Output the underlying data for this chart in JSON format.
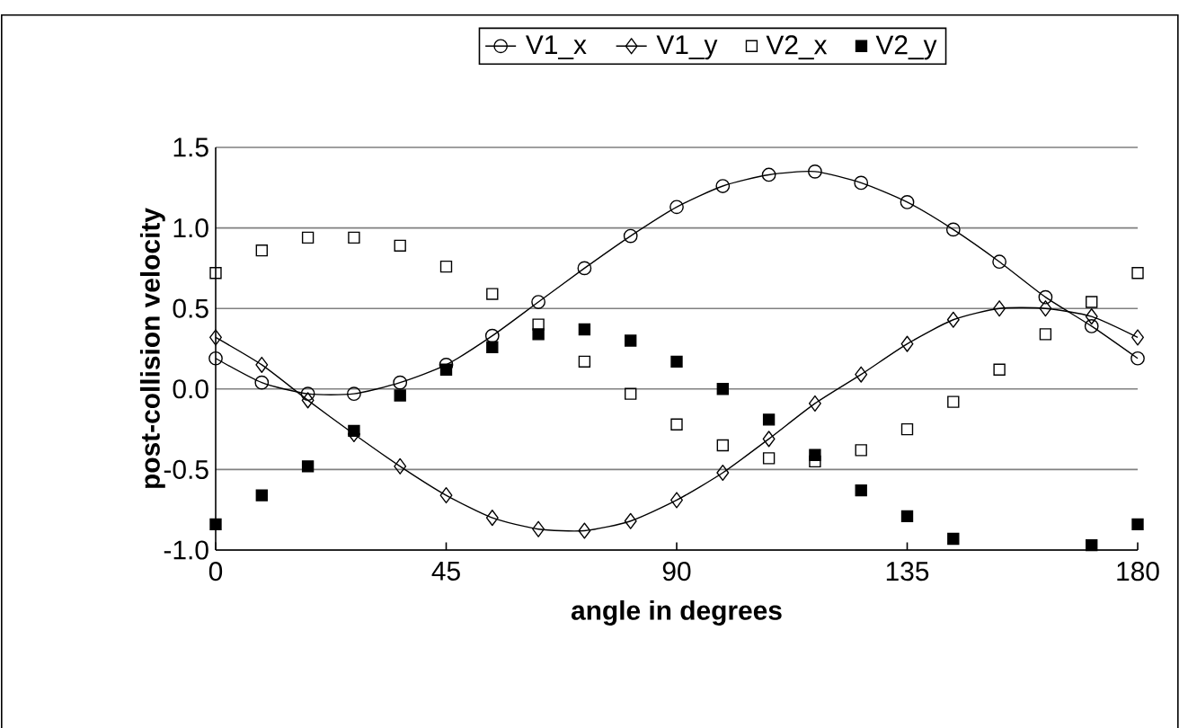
{
  "chart_data": {
    "type": "line",
    "xlabel": "angle in degrees",
    "ylabel": "post-collision velocity",
    "x": [
      0,
      9,
      18,
      27,
      36,
      45,
      54,
      63,
      72,
      81,
      90,
      99,
      108,
      117,
      126,
      135,
      144,
      153,
      162,
      171,
      180
    ],
    "series": [
      {
        "name": "V1_x",
        "marker": "circle",
        "color": "#000000",
        "values": [
          0.19,
          0.04,
          -0.03,
          -0.03,
          0.04,
          0.15,
          0.33,
          0.54,
          0.75,
          0.95,
          1.13,
          1.26,
          1.33,
          1.35,
          1.28,
          1.16,
          0.99,
          0.79,
          0.57,
          0.39,
          0.19
        ]
      },
      {
        "name": "V1_y",
        "marker": "diamond",
        "color": "#000000",
        "values": [
          0.32,
          0.15,
          -0.07,
          -0.28,
          -0.48,
          -0.66,
          -0.8,
          -0.87,
          -0.88,
          -0.82,
          -0.69,
          -0.52,
          -0.31,
          -0.09,
          0.09,
          0.28,
          0.43,
          0.5,
          0.5,
          0.45,
          0.32
        ]
      },
      {
        "name": "V2_x",
        "type": "scatter",
        "marker": "square",
        "color": "#000000",
        "values": [
          0.72,
          0.86,
          0.94,
          0.94,
          0.89,
          0.76,
          0.59,
          0.4,
          0.17,
          -0.03,
          -0.22,
          -0.35,
          -0.43,
          -0.45,
          -0.38,
          -0.25,
          -0.08,
          0.12,
          0.34,
          0.54,
          0.72
        ]
      },
      {
        "name": "V2_y",
        "type": "scatter",
        "marker": "square",
        "color": "#000000",
        "values": [
          -0.84,
          -0.66,
          -0.48,
          -0.26,
          -0.04,
          0.12,
          0.26,
          0.34,
          0.37,
          0.3,
          0.17,
          0.0,
          -0.19,
          -0.41,
          -0.63,
          -0.79,
          -0.93,
          null,
          null,
          -0.97,
          -0.84
        ]
      }
    ],
    "xlim": [
      0,
      180
    ],
    "xticks": [
      0,
      45,
      90,
      135,
      180
    ],
    "ylim": [
      -1.0,
      1.5
    ],
    "yticks": [
      {
        "value": -1.0,
        "label": "-1.0"
      },
      {
        "value": -0.5,
        "label": "-0.5"
      },
      {
        "value": 0,
        "label": "0.0"
      },
      {
        "value": 0.5,
        "label": "0.5"
      },
      {
        "value": 1.0,
        "label": "1.0"
      },
      {
        "value": 1.5,
        "label": "1.5"
      }
    ],
    "grid": "y",
    "legend": "top"
  }
}
